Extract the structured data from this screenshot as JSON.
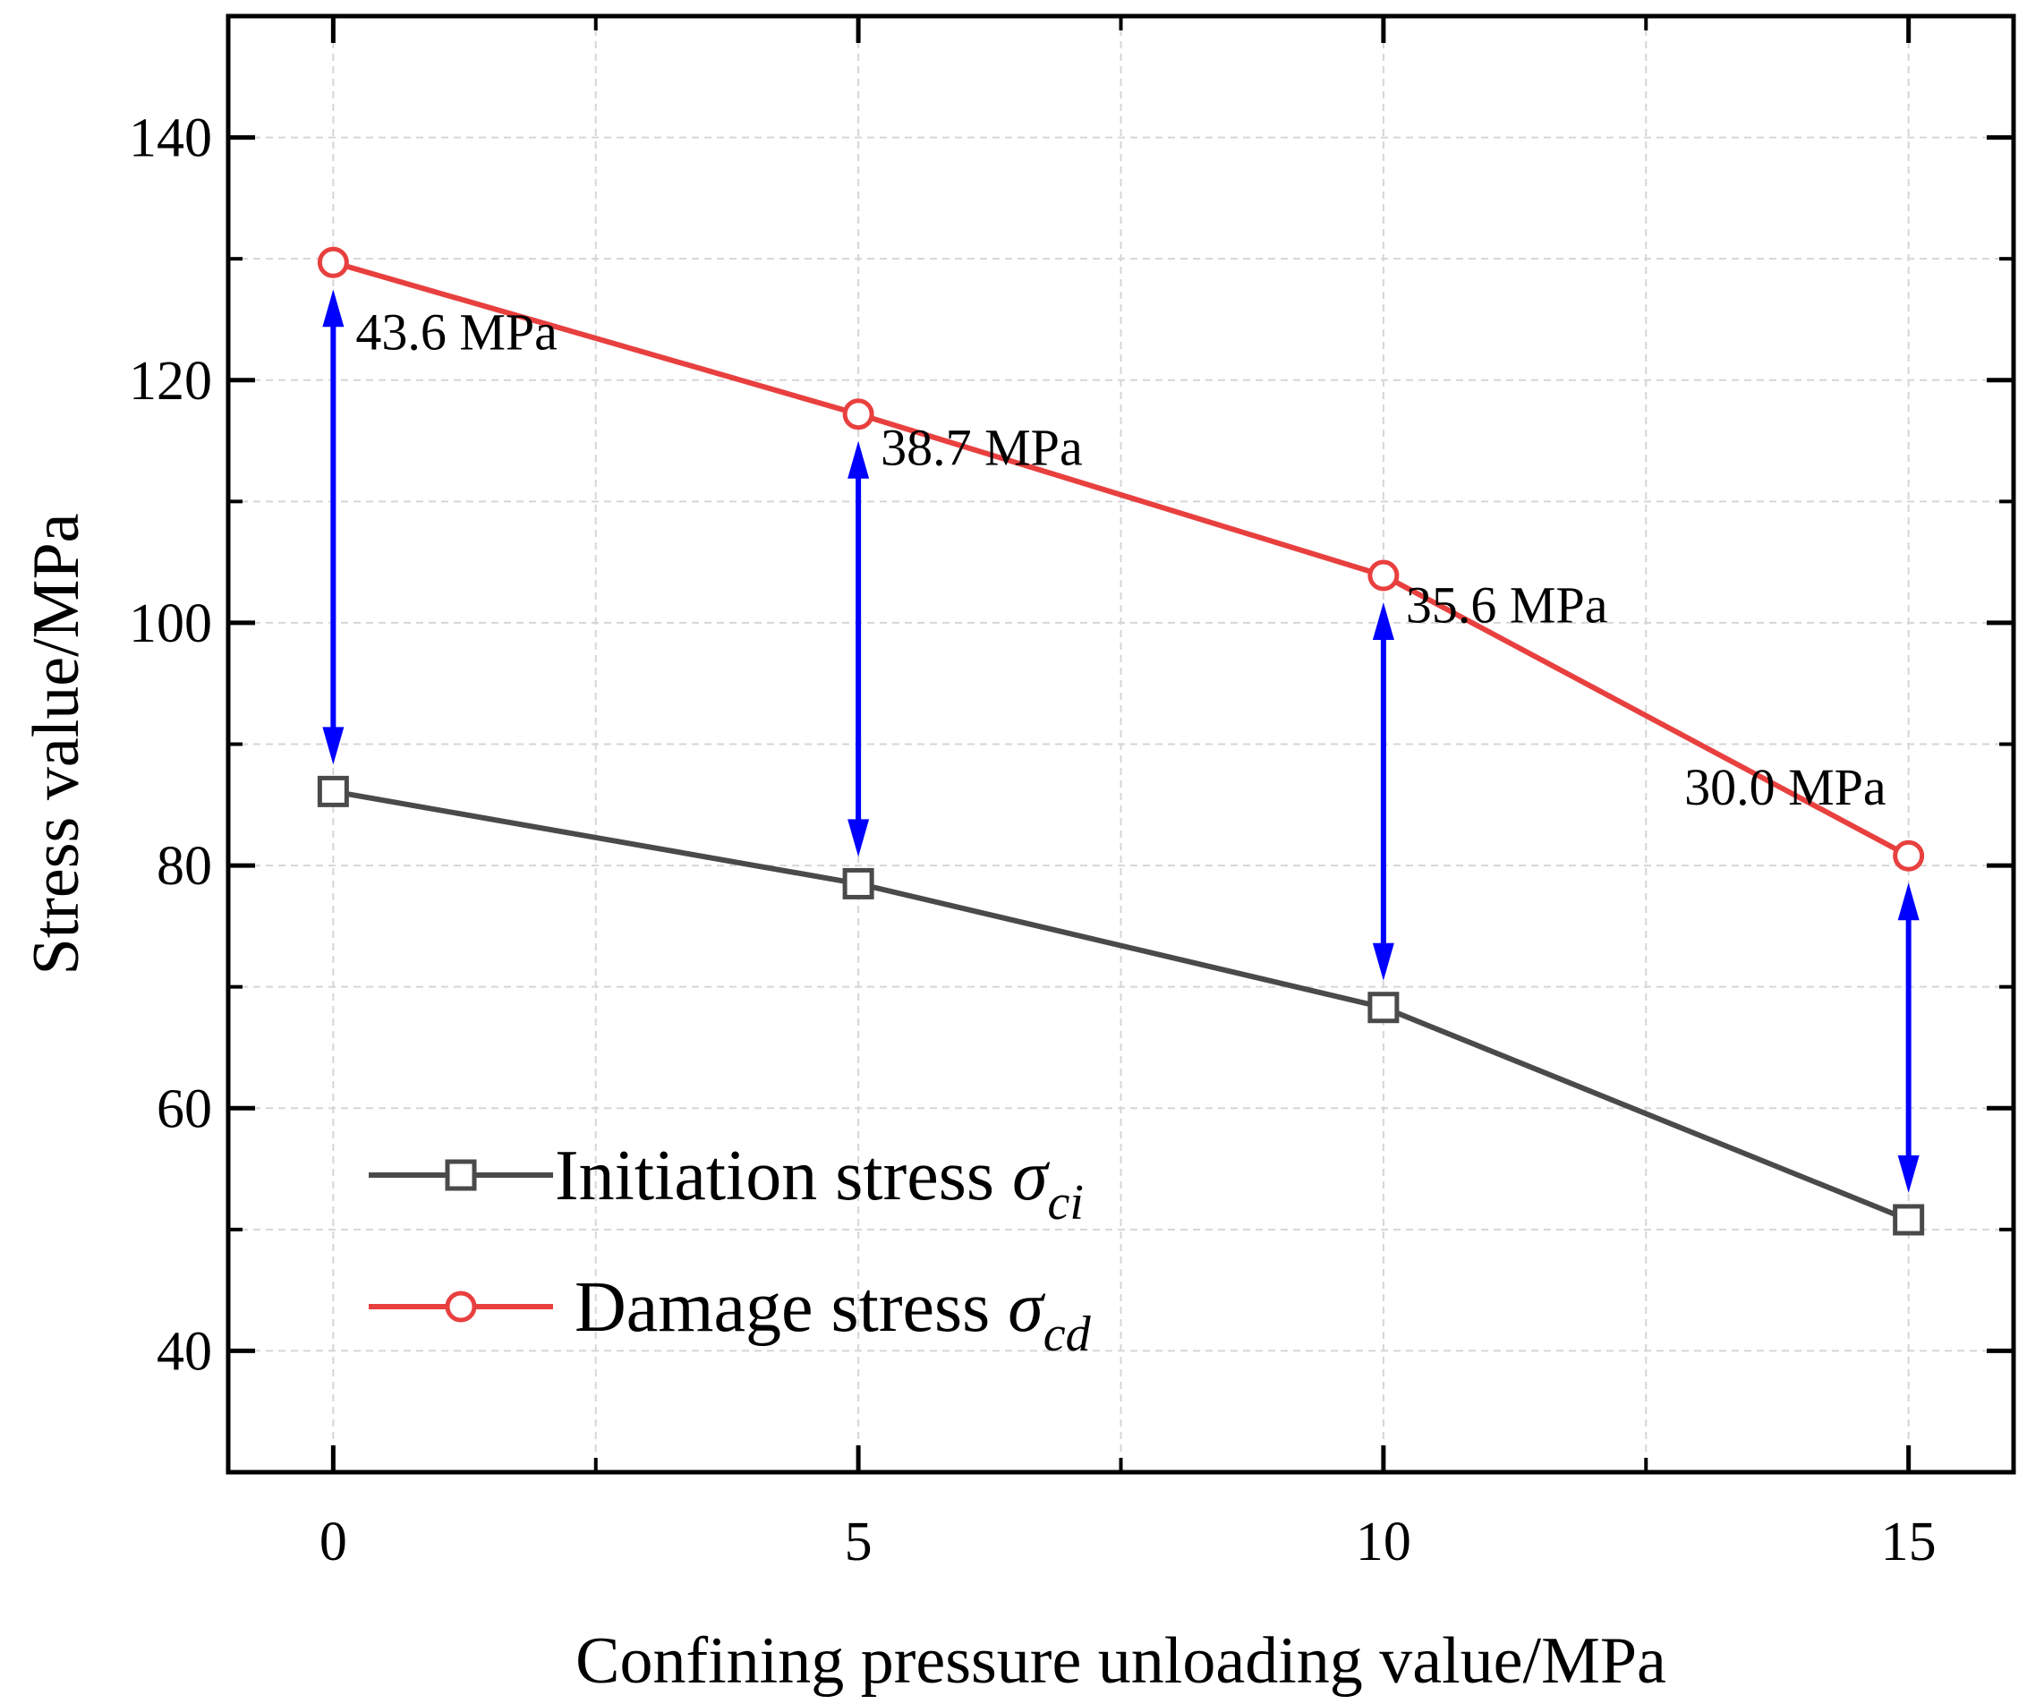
{
  "chart_data": {
    "type": "line",
    "xlabel": "Confining pressure unloading value/MPa",
    "ylabel": "Stress value/MPa",
    "xlim": [
      -1,
      16
    ],
    "ylim": [
      30,
      150
    ],
    "xticks": [
      0,
      5,
      10,
      15
    ],
    "xticks_minor": [
      2.5,
      7.5,
      12.5
    ],
    "yticks": [
      40,
      60,
      80,
      100,
      120,
      140
    ],
    "yticks_minor": [
      50,
      70,
      90,
      110,
      130
    ],
    "x": [
      0,
      5,
      10,
      15
    ],
    "grid": true,
    "legend_position": "bottom-left",
    "series": [
      {
        "name": "Initiation stress",
        "symbol": "σ",
        "subscript": "ci",
        "marker": "square",
        "color": "#4a4a4a",
        "values": [
          86.1,
          78.5,
          68.3,
          50.8
        ]
      },
      {
        "name": "Damage stress",
        "symbol": "σ",
        "subscript": "cd",
        "marker": "circle",
        "color": "#e8403f",
        "values": [
          129.7,
          117.2,
          103.9,
          80.8
        ]
      }
    ],
    "annotations": [
      {
        "x": 0,
        "text": "43.6 MPa",
        "label_y": 124.0
      },
      {
        "x": 5,
        "text": "38.7 MPa",
        "label_y": 114.5
      },
      {
        "x": 10,
        "text": "35.6 MPa",
        "label_y": 101.5
      },
      {
        "x": 15,
        "text": "30.0 MPa",
        "label_y": 86.5
      }
    ],
    "annotation_color": "#0000ff"
  }
}
